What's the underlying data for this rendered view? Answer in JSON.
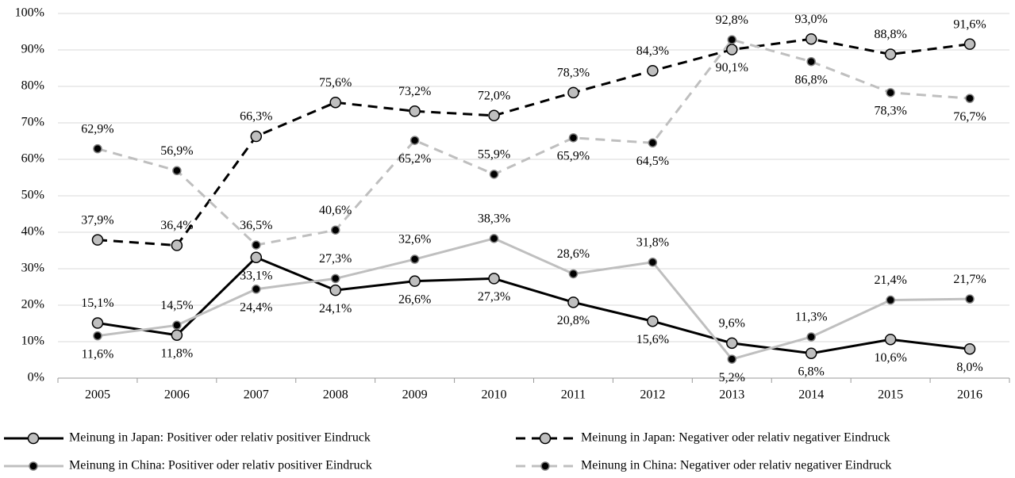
{
  "chart_data": {
    "type": "line",
    "categories": [
      "2005",
      "2006",
      "2007",
      "2008",
      "2009",
      "2010",
      "2011",
      "2012",
      "2013",
      "2014",
      "2015",
      "2016"
    ],
    "ylim": [
      0,
      100
    ],
    "yticks": [
      {
        "value": 0,
        "label": "0%"
      },
      {
        "value": 10,
        "label": "10%"
      },
      {
        "value": 20,
        "label": "20%"
      },
      {
        "value": 30,
        "label": "30%"
      },
      {
        "value": 40,
        "label": "40%"
      },
      {
        "value": 50,
        "label": "50%"
      },
      {
        "value": 60,
        "label": "60%"
      },
      {
        "value": 70,
        "label": "70%"
      },
      {
        "value": 80,
        "label": "80%"
      },
      {
        "value": 90,
        "label": "90%"
      },
      {
        "value": 100,
        "label": "100%"
      }
    ],
    "grid": true,
    "legend": "bottom",
    "series": [
      {
        "name": "Meinung in Japan: Positiver oder relativ positiver Eindruck",
        "color": "#000000",
        "marker_color": "#bfbfbf",
        "line_style": "solid",
        "values": [
          15.1,
          11.8,
          33.1,
          24.1,
          26.6,
          27.3,
          20.8,
          15.6,
          9.6,
          6.8,
          10.6,
          8.0
        ],
        "value_labels": [
          "15,1%",
          "11,8%",
          "33,1%",
          "24,1%",
          "26,6%",
          "27,3%",
          "20,8%",
          "15,6%",
          "9,6%",
          "6,8%",
          "10,6%",
          "8,0%"
        ]
      },
      {
        "name": "Meinung in Japan: Negativer oder relativ negativer Eindruck",
        "color": "#000000",
        "marker_color": "#bfbfbf",
        "line_style": "dashed",
        "values": [
          37.9,
          36.4,
          66.3,
          75.6,
          73.2,
          72.0,
          78.3,
          84.3,
          90.1,
          93.0,
          88.8,
          91.6
        ],
        "value_labels": [
          "37,9%",
          "36,4%",
          "66,3%",
          "75,6%",
          "73,2%",
          "72,0%",
          "78,3%",
          "84,3%",
          "90,1%",
          "93,0%",
          "88,8%",
          "91,6%"
        ]
      },
      {
        "name": "Meinung in China: Positiver oder relativ positiver Eindruck",
        "color": "#bfbfbf",
        "marker_color": "#000000",
        "line_style": "solid",
        "values": [
          11.6,
          14.5,
          24.4,
          27.3,
          32.6,
          38.3,
          28.6,
          31.8,
          5.2,
          11.3,
          21.4,
          21.7
        ],
        "value_labels": [
          "11,6%",
          "14,5%",
          "24,4%",
          "27,3%",
          "32,6%",
          "38,3%",
          "28,6%",
          "31,8%",
          "5,2%",
          "11,3%",
          "21,4%",
          "21,7%"
        ]
      },
      {
        "name": "Meinung in China: Negativer oder relativ negativer Eindruck",
        "color": "#bfbfbf",
        "marker_color": "#000000",
        "line_style": "dashed",
        "values": [
          62.9,
          56.9,
          36.5,
          40.6,
          65.2,
          55.9,
          65.9,
          64.5,
          92.8,
          86.8,
          78.3,
          76.7
        ],
        "value_labels": [
          "62,9%",
          "56,9%",
          "36,5%",
          "40,6%",
          "65,2%",
          "55,9%",
          "65,9%",
          "64,5%",
          "92,8%",
          "86,8%",
          "78,3%",
          "76,7%"
        ]
      }
    ]
  }
}
